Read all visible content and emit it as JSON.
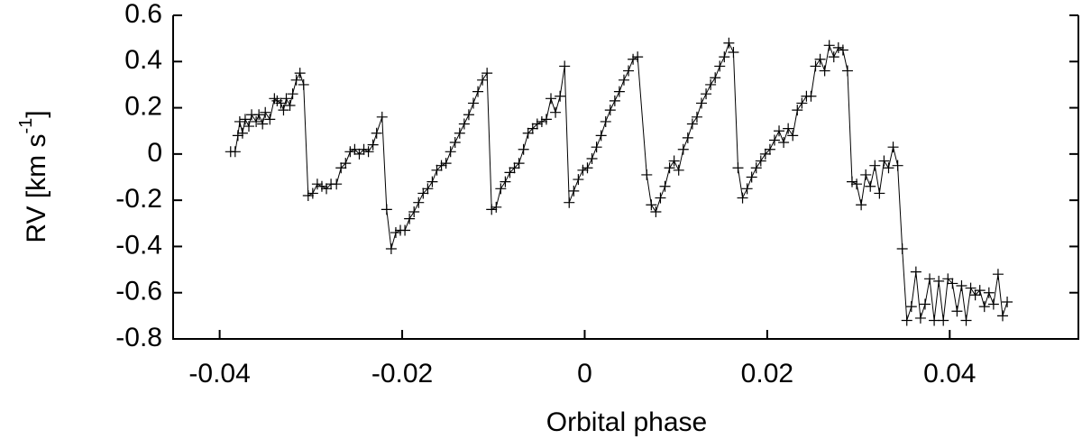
{
  "chart_data": {
    "type": "line",
    "xlabel": "Orbital phase",
    "ylabel": [
      "RV [km s",
      "-1",
      "]"
    ],
    "color": "#000000",
    "marker": "+",
    "xlim": [
      -0.0451,
      0.0541
    ],
    "ylim": [
      -0.8,
      0.6
    ],
    "xticks": [
      -0.04,
      -0.02,
      0,
      0.02,
      0.04
    ],
    "yticks": [
      -0.8,
      -0.6,
      -0.4,
      -0.2,
      0,
      0.2,
      0.4,
      0.6
    ],
    "x": [
      -0.0388,
      -0.0383,
      -0.038,
      -0.0378,
      -0.0375,
      -0.0372,
      -0.0368,
      -0.0365,
      -0.036,
      -0.0357,
      -0.0353,
      -0.035,
      -0.0345,
      -0.034,
      -0.0337,
      -0.0333,
      -0.033,
      -0.0327,
      -0.0323,
      -0.032,
      -0.0316,
      -0.0312,
      -0.0308,
      -0.0303,
      -0.0298,
      -0.0293,
      -0.0288,
      -0.0283,
      -0.0278,
      -0.0272,
      -0.0267,
      -0.0262,
      -0.0257,
      -0.0252,
      -0.0247,
      -0.0242,
      -0.0237,
      -0.0232,
      -0.0228,
      -0.0222,
      -0.0217,
      -0.0212,
      -0.0207,
      -0.0202,
      -0.0197,
      -0.0192,
      -0.0187,
      -0.0182,
      -0.0177,
      -0.0172,
      -0.0167,
      -0.0162,
      -0.0157,
      -0.0152,
      -0.0147,
      -0.0142,
      -0.0137,
      -0.0132,
      -0.0127,
      -0.0122,
      -0.0117,
      -0.0112,
      -0.0107,
      -0.0102,
      -0.0097,
      -0.0092,
      -0.0087,
      -0.0082,
      -0.0077,
      -0.0072,
      -0.0067,
      -0.0062,
      -0.0057,
      -0.0052,
      -0.0047,
      -0.0042,
      -0.0037,
      -0.0032,
      -0.0027,
      -0.0022,
      -0.0017,
      -0.0012,
      -0.0007,
      -0.0002,
      0.0003,
      0.0008,
      0.0013,
      0.0018,
      0.0023,
      0.0028,
      0.0033,
      0.0038,
      0.0043,
      0.0048,
      0.0053,
      0.0058,
      0.0068,
      0.0073,
      0.0078,
      0.0083,
      0.0088,
      0.0093,
      0.0098,
      0.0103,
      0.0108,
      0.0113,
      0.0118,
      0.0123,
      0.0128,
      0.0133,
      0.0138,
      0.0143,
      0.0148,
      0.0153,
      0.0158,
      0.0163,
      0.0168,
      0.0173,
      0.0178,
      0.0183,
      0.0188,
      0.0193,
      0.0198,
      0.0203,
      0.0208,
      0.0213,
      0.0218,
      0.0223,
      0.0228,
      0.0233,
      0.0238,
      0.0243,
      0.0248,
      0.0253,
      0.0258,
      0.0263,
      0.0268,
      0.0273,
      0.0278,
      0.0283,
      0.0288,
      0.0293,
      0.0298,
      0.0303,
      0.0308,
      0.0313,
      0.0318,
      0.0323,
      0.0328,
      0.0333,
      0.0338,
      0.0343,
      0.0348,
      0.0353,
      0.0358,
      0.0363,
      0.0368,
      0.0373,
      0.0378,
      0.0383,
      0.0388,
      0.0393,
      0.0398,
      0.0403,
      0.0408,
      0.0413,
      0.0418,
      0.0423,
      0.0428,
      0.0433,
      0.0438,
      0.0443,
      0.0448,
      0.0453,
      0.0458,
      0.0463
    ],
    "values": [
      0.01,
      0.01,
      0.08,
      0.14,
      0.09,
      0.15,
      0.12,
      0.17,
      0.14,
      0.17,
      0.13,
      0.18,
      0.15,
      0.24,
      0.23,
      0.22,
      0.19,
      0.24,
      0.21,
      0.26,
      0.32,
      0.35,
      0.3,
      -0.18,
      -0.17,
      -0.13,
      -0.14,
      -0.15,
      -0.13,
      -0.13,
      -0.06,
      -0.04,
      0.01,
      0.02,
      0.0,
      0.02,
      0.01,
      0.04,
      0.09,
      0.16,
      -0.24,
      -0.41,
      -0.34,
      -0.33,
      -0.33,
      -0.28,
      -0.25,
      -0.21,
      -0.17,
      -0.15,
      -0.12,
      -0.07,
      -0.05,
      -0.04,
      0.01,
      0.05,
      0.09,
      0.13,
      0.17,
      0.22,
      0.27,
      0.32,
      0.35,
      -0.24,
      -0.23,
      -0.15,
      -0.12,
      -0.08,
      -0.06,
      -0.04,
      0.02,
      0.09,
      0.11,
      0.13,
      0.14,
      0.15,
      0.24,
      0.18,
      0.25,
      0.38,
      -0.21,
      -0.16,
      -0.11,
      -0.07,
      -0.06,
      -0.02,
      0.03,
      0.08,
      0.14,
      0.19,
      0.23,
      0.27,
      0.32,
      0.36,
      0.41,
      0.42,
      -0.09,
      -0.22,
      -0.25,
      -0.19,
      -0.14,
      -0.06,
      -0.03,
      -0.07,
      0.02,
      0.07,
      0.13,
      0.16,
      0.22,
      0.26,
      0.3,
      0.33,
      0.38,
      0.42,
      0.48,
      0.44,
      -0.06,
      -0.19,
      -0.15,
      -0.1,
      -0.06,
      -0.03,
      0.0,
      0.02,
      0.06,
      0.1,
      0.05,
      0.11,
      0.08,
      0.19,
      0.22,
      0.25,
      0.25,
      0.38,
      0.41,
      0.36,
      0.47,
      0.42,
      0.46,
      0.45,
      0.36,
      -0.12,
      -0.13,
      -0.22,
      -0.09,
      -0.14,
      -0.05,
      -0.17,
      -0.03,
      -0.06,
      0.03,
      -0.05,
      -0.41,
      -0.72,
      -0.66,
      -0.51,
      -0.71,
      -0.65,
      -0.54,
      -0.72,
      -0.55,
      -0.72,
      -0.54,
      -0.56,
      -0.68,
      -0.57,
      -0.72,
      -0.58,
      -0.61,
      -0.59,
      -0.66,
      -0.6,
      -0.65,
      -0.52,
      -0.7,
      -0.64
    ]
  }
}
